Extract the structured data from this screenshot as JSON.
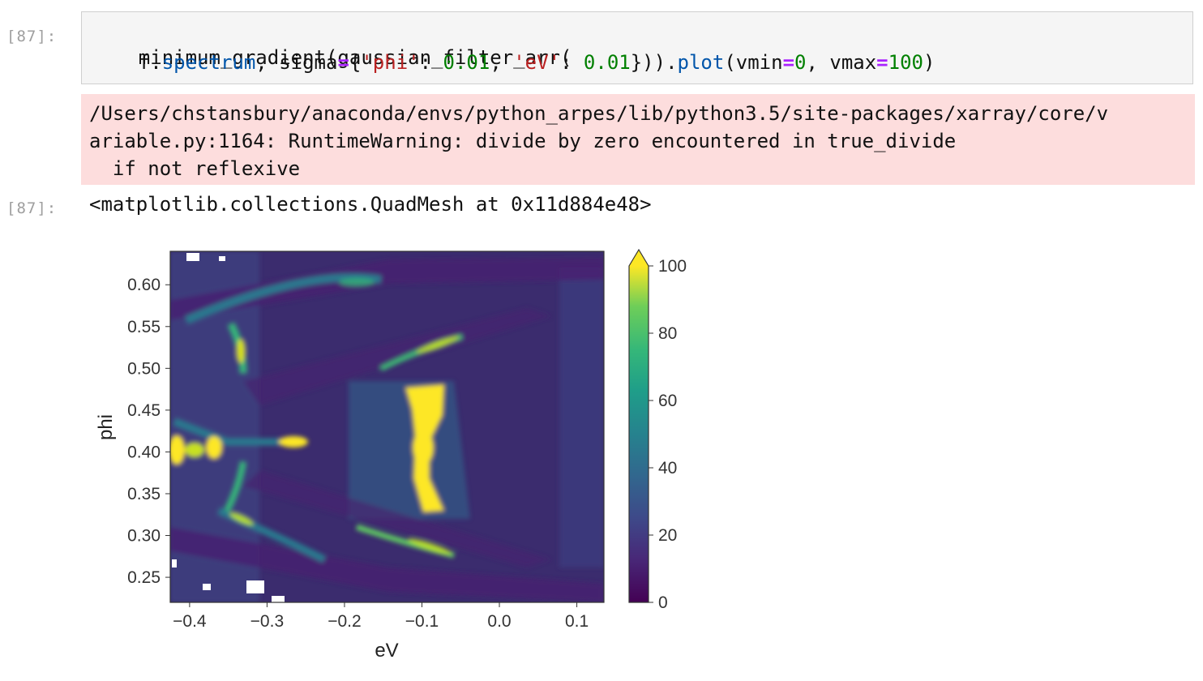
{
  "cell": {
    "input_prompt": "[87]:",
    "output_prompt": "[87]:",
    "code": {
      "l1_func": "minimum_gradient(gaussian_filter_arr(",
      "l2_indent": "    f.",
      "l2_attr": "spectrum",
      "l2_a": ", sigma",
      "l2_eq1": "=",
      "l2_b": "{",
      "l2_str1": "'phi'",
      "l2_c": ": ",
      "l2_num1": "0.01",
      "l2_d": ", ",
      "l2_str2": "'eV'",
      "l2_e": ": ",
      "l2_num2": "0.01",
      "l2_f": "})).",
      "l2_method": "plot",
      "l2_g": "(vmin",
      "l2_eq2": "=",
      "l2_num3": "0",
      "l2_h": ", vmax",
      "l2_eq3": "=",
      "l2_num4": "100",
      "l2_i": ")"
    },
    "stderr_lines": [
      "/Users/chstansbury/anaconda/envs/python_arpes/lib/python3.5/site-packages/xarray/core/v",
      "ariable.py:1164: RuntimeWarning: divide by zero encountered in true_divide",
      "  if not reflexive"
    ],
    "output_repr": "<matplotlib.collections.QuadMesh at 0x11d884e48>"
  },
  "chart_data": {
    "type": "heatmap",
    "title": "",
    "xlabel": "eV",
    "ylabel": "phi",
    "xlim": [
      -0.425,
      0.135
    ],
    "ylim": [
      0.22,
      0.64
    ],
    "x_ticks": [
      -0.4,
      -0.3,
      -0.2,
      -0.1,
      0.0,
      0.1
    ],
    "x_tick_labels": [
      "−0.4",
      "−0.3",
      "−0.2",
      "−0.1",
      "0.0",
      "0.1"
    ],
    "y_ticks": [
      0.25,
      0.3,
      0.35,
      0.4,
      0.45,
      0.5,
      0.55,
      0.6
    ],
    "y_tick_labels": [
      "0.25",
      "0.30",
      "0.35",
      "0.40",
      "0.45",
      "0.50",
      "0.55",
      "0.60"
    ],
    "colormap": "viridis",
    "colorbar": {
      "vmin": 0,
      "vmax": 100,
      "ticks": [
        0,
        20,
        40,
        60,
        80,
        100
      ],
      "tick_labels": [
        "0",
        "20",
        "40",
        "60",
        "80",
        "100"
      ],
      "extend": "max"
    },
    "colors": {
      "low": "#440154",
      "mid": "#21918c",
      "high": "#fde725",
      "background": "#3b2c6e"
    }
  }
}
